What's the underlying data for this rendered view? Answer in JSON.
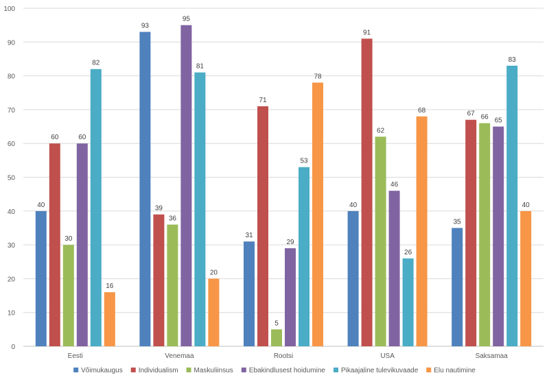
{
  "chart_data": {
    "type": "bar",
    "categories": [
      "Eesti",
      "Venemaa",
      "Rootsi",
      "USA",
      "Saksamaa"
    ],
    "series": [
      {
        "name": "Võimukaugus",
        "color": "#4f81bd",
        "values": [
          40,
          93,
          31,
          40,
          35
        ]
      },
      {
        "name": "Individualism",
        "color": "#c0504d",
        "values": [
          60,
          39,
          71,
          91,
          67
        ]
      },
      {
        "name": "Maskuliinsus",
        "color": "#9bbb59",
        "values": [
          30,
          36,
          5,
          62,
          66
        ]
      },
      {
        "name": "Ebakindlusest hoidumine",
        "color": "#8064a2",
        "values": [
          60,
          95,
          29,
          46,
          65
        ]
      },
      {
        "name": "Pikaajaline tulevikuvaade",
        "color": "#4bacc6",
        "values": [
          82,
          81,
          53,
          26,
          83
        ]
      },
      {
        "name": "Elu nautimine",
        "color": "#f79646",
        "values": [
          16,
          20,
          78,
          68,
          40
        ]
      }
    ],
    "ylim": [
      0,
      100
    ],
    "yticks": [
      0,
      10,
      20,
      30,
      40,
      50,
      60,
      70,
      80,
      90,
      100
    ],
    "grid": true,
    "legend_position": "bottom",
    "title": "",
    "xlabel": "",
    "ylabel": ""
  }
}
